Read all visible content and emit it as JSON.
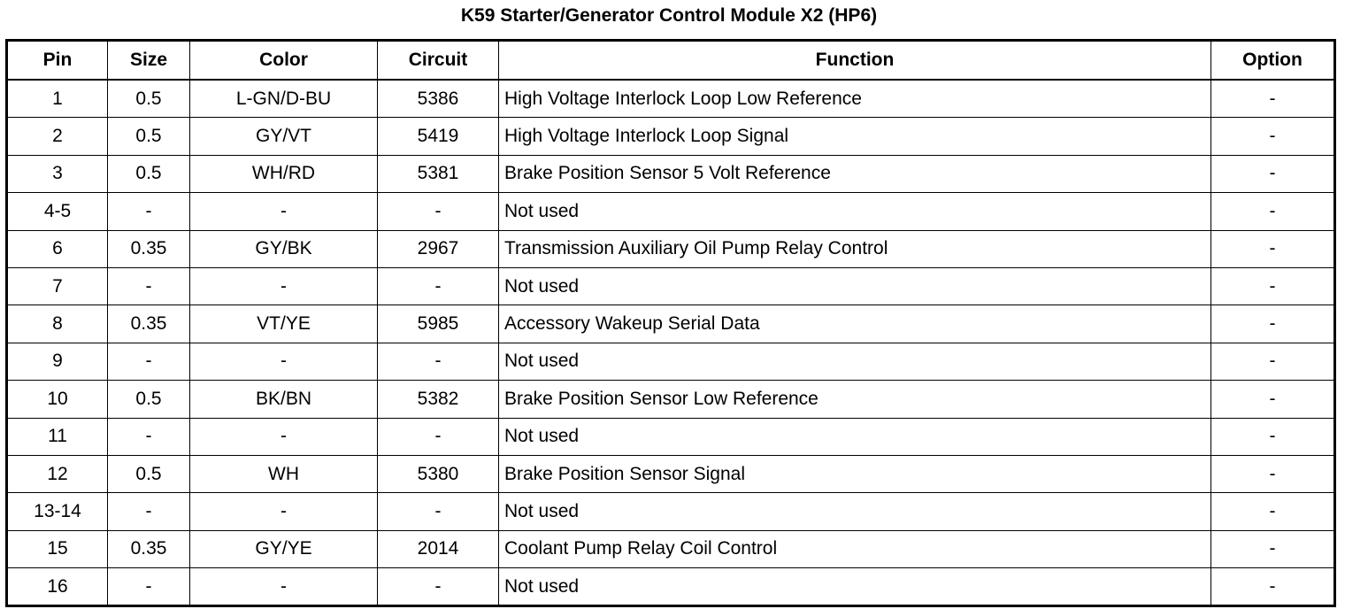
{
  "title": "K59 Starter/Generator Control Module X2 (HP6)",
  "headers": [
    "Pin",
    "Size",
    "Color",
    "Circuit",
    "Function",
    "Option"
  ],
  "rows": [
    [
      "1",
      "0.5",
      "L-GN/D-BU",
      "5386",
      "High Voltage Interlock Loop Low Reference",
      "-"
    ],
    [
      "2",
      "0.5",
      "GY/VT",
      "5419",
      "High Voltage Interlock Loop Signal",
      "-"
    ],
    [
      "3",
      "0.5",
      "WH/RD",
      "5381",
      "Brake Position Sensor 5 Volt Reference",
      "-"
    ],
    [
      "4-5",
      "-",
      "-",
      "-",
      "Not used",
      "-"
    ],
    [
      "6",
      "0.35",
      "GY/BK",
      "2967",
      "Transmission Auxiliary Oil Pump Relay Control",
      "-"
    ],
    [
      "7",
      "-",
      "-",
      "-",
      "Not used",
      "-"
    ],
    [
      "8",
      "0.35",
      "VT/YE",
      "5985",
      "Accessory Wakeup Serial Data",
      "-"
    ],
    [
      "9",
      "-",
      "-",
      "-",
      "Not used",
      "-"
    ],
    [
      "10",
      "0.5",
      "BK/BN",
      "5382",
      "Brake Position Sensor Low Reference",
      "-"
    ],
    [
      "11",
      "-",
      "-",
      "-",
      "Not used",
      "-"
    ],
    [
      "12",
      "0.5",
      "WH",
      "5380",
      "Brake Position Sensor Signal",
      "-"
    ],
    [
      "13-14",
      "-",
      "-",
      "-",
      "Not used",
      "-"
    ],
    [
      "15",
      "0.35",
      "GY/YE",
      "2014",
      "Coolant Pump Relay Coil Control",
      "-"
    ],
    [
      "16",
      "-",
      "-",
      "-",
      "Not used",
      "-"
    ]
  ]
}
